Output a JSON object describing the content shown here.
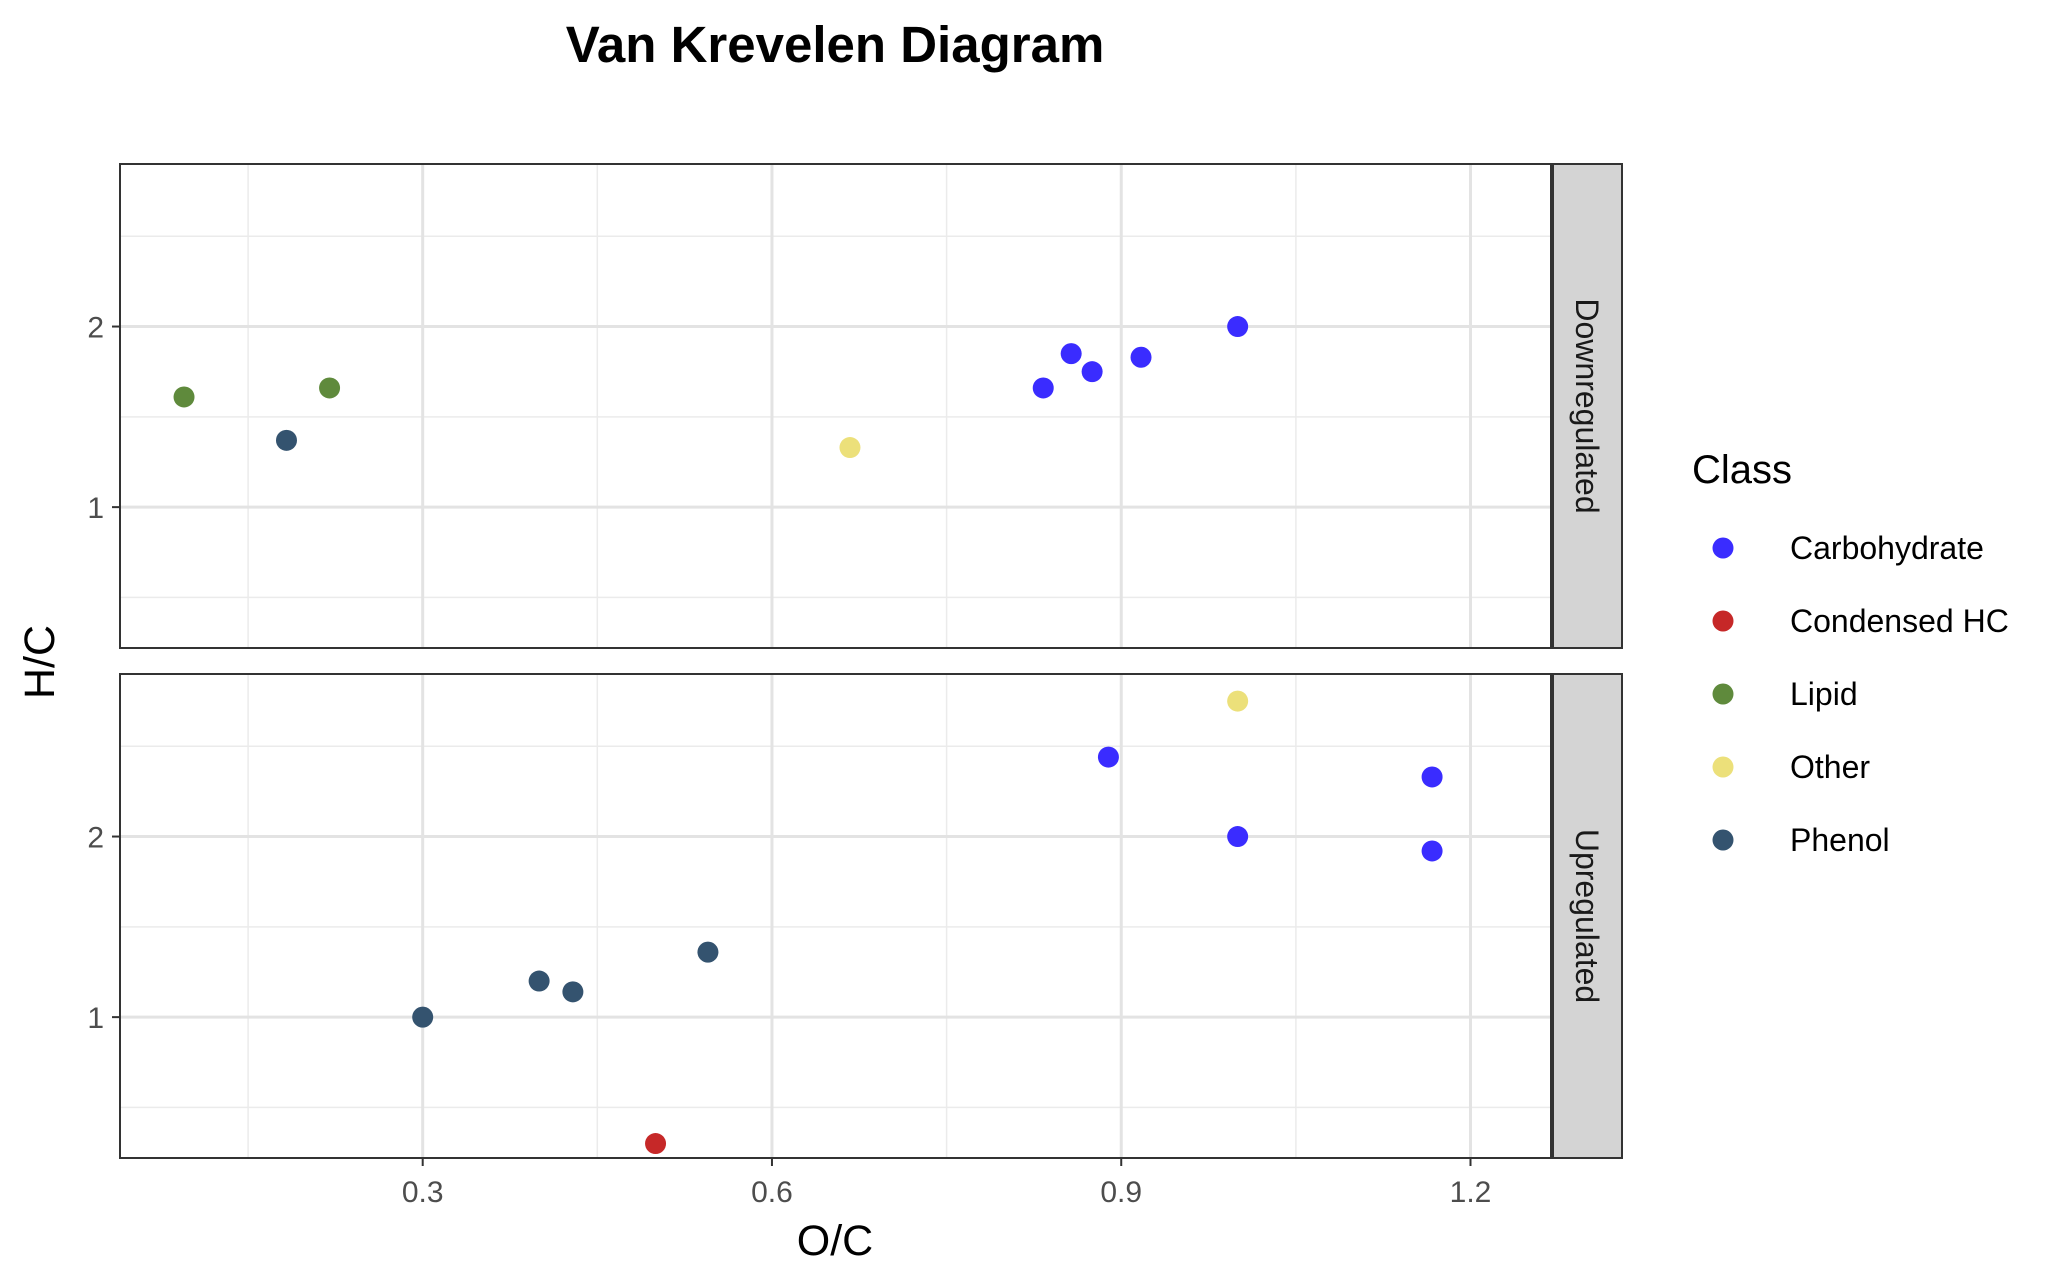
{
  "chart_data": {
    "type": "scatter",
    "title": "Van Krevelen Diagram",
    "xlabel": "O/C",
    "ylabel": "H/C",
    "xlim": [
      0.04,
      1.27
    ],
    "ylim": [
      0.22,
      2.9
    ],
    "x_ticks": [
      0.3,
      0.6,
      0.9,
      1.2
    ],
    "x_tick_labels": [
      "0.3",
      "0.6",
      "0.9",
      "1.2"
    ],
    "y_ticks": [
      1,
      2
    ],
    "y_tick_labels": [
      "1",
      "2"
    ],
    "grid": true,
    "legend": {
      "title": "Class",
      "position": "right",
      "entries": [
        {
          "name": "Carbohydrate",
          "color": "#3a2cff"
        },
        {
          "name": "Condensed HC",
          "color": "#c62828"
        },
        {
          "name": "Lipid",
          "color": "#5f8a3c"
        },
        {
          "name": "Other",
          "color": "#ece07a"
        },
        {
          "name": "Phenol",
          "color": "#34536f"
        }
      ]
    },
    "panels": [
      {
        "label": "Downregulated",
        "points": [
          {
            "x": 0.095,
            "y": 1.61,
            "class": "Lipid"
          },
          {
            "x": 0.22,
            "y": 1.66,
            "class": "Lipid"
          },
          {
            "x": 0.183,
            "y": 1.37,
            "class": "Phenol"
          },
          {
            "x": 0.667,
            "y": 1.33,
            "class": "Other"
          },
          {
            "x": 0.833,
            "y": 1.66,
            "class": "Carbohydrate"
          },
          {
            "x": 0.857,
            "y": 1.85,
            "class": "Carbohydrate"
          },
          {
            "x": 0.875,
            "y": 1.75,
            "class": "Carbohydrate"
          },
          {
            "x": 0.917,
            "y": 1.83,
            "class": "Carbohydrate"
          },
          {
            "x": 1.0,
            "y": 2.0,
            "class": "Carbohydrate"
          }
        ]
      },
      {
        "label": "Upregulated",
        "points": [
          {
            "x": 0.889,
            "y": 2.44,
            "class": "Carbohydrate"
          },
          {
            "x": 1.0,
            "y": 2.0,
            "class": "Carbohydrate"
          },
          {
            "x": 1.167,
            "y": 2.33,
            "class": "Carbohydrate"
          },
          {
            "x": 1.167,
            "y": 1.92,
            "class": "Carbohydrate"
          },
          {
            "x": 1.0,
            "y": 2.75,
            "class": "Other"
          },
          {
            "x": 0.3,
            "y": 1.0,
            "class": "Phenol"
          },
          {
            "x": 0.4,
            "y": 1.2,
            "class": "Phenol"
          },
          {
            "x": 0.429,
            "y": 1.14,
            "class": "Phenol"
          },
          {
            "x": 0.545,
            "y": 1.36,
            "class": "Phenol"
          },
          {
            "x": 0.5,
            "y": 0.3,
            "class": "Condensed HC"
          }
        ]
      }
    ]
  }
}
